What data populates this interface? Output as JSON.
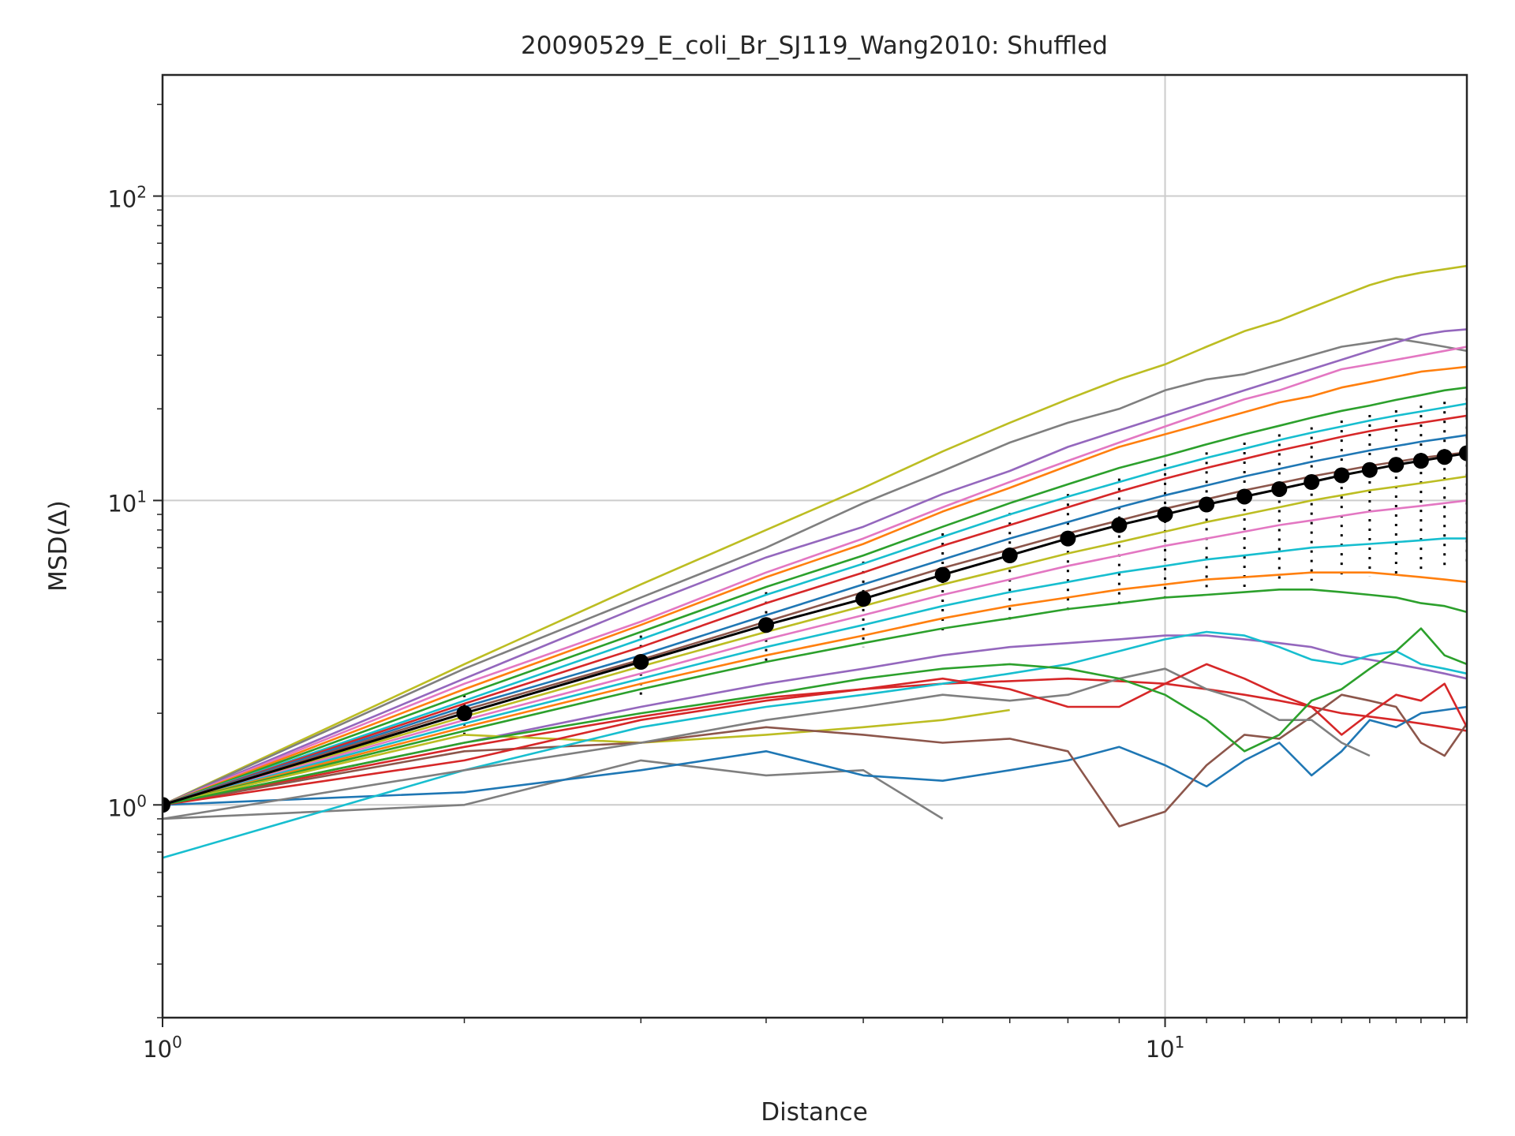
{
  "chart_data": {
    "type": "line",
    "title": "20090529_E_coli_Br_SJ119_Wang2010: Shuffled",
    "xlabel": "Distance",
    "ylabel": "MSD(Δ)",
    "xscale": "log",
    "yscale": "log",
    "xlim": [
      1,
      20
    ],
    "ylim": [
      0.2,
      250
    ],
    "grid": true,
    "x_ticks": [
      {
        "base": "10",
        "exp": "0",
        "value": 1
      },
      {
        "base": "10",
        "exp": "1",
        "value": 10
      }
    ],
    "y_ticks": [
      {
        "base": "10",
        "exp": "0",
        "value": 1
      },
      {
        "base": "10",
        "exp": "1",
        "value": 10
      },
      {
        "base": "10",
        "exp": "2",
        "value": 100
      }
    ],
    "mean_series": {
      "x": [
        1,
        2,
        3,
        4,
        5,
        6,
        7,
        8,
        9,
        10,
        11,
        12,
        13,
        14,
        15,
        16,
        17,
        18,
        19,
        20
      ],
      "y": [
        1.0,
        2.0,
        2.95,
        3.9,
        4.75,
        5.7,
        6.6,
        7.5,
        8.3,
        9.0,
        9.7,
        10.3,
        10.9,
        11.5,
        12.1,
        12.6,
        13.1,
        13.5,
        13.9,
        14.3
      ],
      "color": "#000000"
    },
    "spread_band": {
      "upper": [
        1.0,
        2.3,
        3.6,
        5.0,
        6.3,
        7.8,
        9.1,
        10.5,
        11.8,
        13.2,
        14.4,
        15.5,
        16.5,
        17.4,
        18.3,
        19.1,
        19.8,
        20.5,
        21.1,
        21.7
      ],
      "lower": [
        1.0,
        1.7,
        2.3,
        2.85,
        3.3,
        3.65,
        4.0,
        4.3,
        4.55,
        4.8,
        5.0,
        5.15,
        5.3,
        5.45,
        5.55,
        5.65,
        5.75,
        5.85,
        5.95,
        6.0
      ]
    },
    "palette": [
      "#1f77b4",
      "#ff7f0e",
      "#2ca02c",
      "#d62728",
      "#9467bd",
      "#8c564b",
      "#e377c2",
      "#7f7f7f",
      "#bcbd22",
      "#17becf"
    ],
    "series": [
      {
        "x": [
          1,
          2,
          3,
          4,
          5,
          6,
          7,
          8,
          9,
          10,
          11,
          12,
          13,
          14,
          15,
          16,
          17,
          18,
          19,
          20
        ],
        "y": [
          1,
          2.9,
          5.3,
          8,
          11,
          14.5,
          18,
          21.5,
          25,
          28,
          32,
          36,
          39,
          43,
          47,
          51,
          54,
          56,
          57.5,
          59
        ],
        "color": "#bcbd22"
      },
      {
        "x": [
          1,
          2,
          3,
          4,
          5,
          6,
          7,
          8,
          9,
          10,
          11,
          12,
          13,
          14,
          15,
          16,
          17,
          18,
          19,
          20
        ],
        "y": [
          1,
          2.8,
          4.8,
          7,
          9.8,
          12.5,
          15.5,
          18,
          20,
          23,
          25,
          26,
          28,
          30,
          32,
          33,
          34,
          33,
          32,
          31
        ],
        "color": "#7f7f7f"
      },
      {
        "x": [
          1,
          2,
          3,
          4,
          5,
          6,
          7,
          8,
          9,
          10,
          11,
          12,
          13,
          14,
          15,
          16,
          17,
          18,
          19,
          20
        ],
        "y": [
          1,
          2.6,
          4.5,
          6.5,
          8.2,
          10.5,
          12.5,
          15,
          17,
          19,
          21,
          23,
          25,
          27,
          29,
          31,
          33,
          35,
          36,
          36.5
        ],
        "color": "#9467bd"
      },
      {
        "x": [
          1,
          2,
          3,
          4,
          5,
          6,
          7,
          8,
          9,
          10,
          11,
          12,
          13,
          14,
          15,
          16,
          17,
          18,
          19,
          20
        ],
        "y": [
          1,
          2.5,
          4,
          5.8,
          7.5,
          9.5,
          11.5,
          13.5,
          15.5,
          17.5,
          19.5,
          21.5,
          23,
          25,
          27,
          28,
          29,
          30,
          31,
          32
        ],
        "color": "#e377c2"
      },
      {
        "x": [
          1,
          2,
          3,
          4,
          5,
          6,
          7,
          8,
          9,
          10,
          11,
          12,
          13,
          14,
          15,
          16,
          17,
          18,
          19,
          20
        ],
        "y": [
          1,
          2.4,
          3.9,
          5.6,
          7.2,
          9.2,
          11,
          13,
          15,
          16.5,
          18,
          19.5,
          21,
          22,
          23.5,
          24.5,
          25.5,
          26.5,
          27,
          27.5
        ],
        "color": "#ff7f0e"
      },
      {
        "x": [
          1,
          2,
          3,
          4,
          5,
          6,
          7,
          8,
          9,
          10,
          11,
          12,
          13,
          14,
          15,
          16,
          17,
          18,
          19,
          20
        ],
        "y": [
          1,
          2.3,
          3.7,
          5.2,
          6.6,
          8.2,
          9.8,
          11.3,
          12.8,
          14,
          15.3,
          16.5,
          17.6,
          18.7,
          19.7,
          20.5,
          21.4,
          22.2,
          23,
          23.5
        ],
        "color": "#2ca02c"
      },
      {
        "x": [
          1,
          2,
          3,
          4,
          5,
          6,
          7,
          8,
          9,
          10,
          11,
          12,
          13,
          14,
          15,
          16,
          17,
          18,
          19,
          20
        ],
        "y": [
          1,
          2.2,
          3.5,
          4.9,
          6.2,
          7.6,
          9,
          10.3,
          11.5,
          12.7,
          13.8,
          14.8,
          15.8,
          16.7,
          17.5,
          18.3,
          19,
          19.6,
          20.2,
          20.8
        ],
        "color": "#17becf"
      },
      {
        "x": [
          1,
          2,
          3,
          4,
          5,
          6,
          7,
          8,
          9,
          10,
          11,
          12,
          13,
          14,
          15,
          16,
          17,
          18,
          19,
          20
        ],
        "y": [
          1,
          2.15,
          3.3,
          4.6,
          5.8,
          7.1,
          8.3,
          9.5,
          10.7,
          11.8,
          12.8,
          13.7,
          14.6,
          15.4,
          16.2,
          16.9,
          17.5,
          18,
          18.5,
          19
        ],
        "color": "#d62728"
      },
      {
        "x": [
          1,
          2,
          3,
          4,
          5,
          6,
          7,
          8,
          9,
          10,
          11,
          12,
          13,
          14,
          15,
          16,
          17,
          18,
          19,
          20
        ],
        "y": [
          1,
          2.1,
          3.1,
          4.2,
          5.3,
          6.4,
          7.5,
          8.5,
          9.5,
          10.4,
          11.2,
          12,
          12.7,
          13.4,
          14,
          14.6,
          15.1,
          15.6,
          16,
          16.4
        ],
        "color": "#1f77b4"
      },
      {
        "x": [
          1,
          2,
          3,
          4,
          5,
          6,
          7,
          8,
          9,
          10,
          11,
          12,
          13,
          14,
          15,
          16,
          17,
          18,
          19,
          20
        ],
        "y": [
          1,
          2.05,
          3,
          4,
          5,
          6,
          6.9,
          7.8,
          8.6,
          9.4,
          10.1,
          10.8,
          11.4,
          12,
          12.5,
          13,
          13.4,
          13.8,
          14.1,
          14.4
        ],
        "color": "#8c564b"
      },
      {
        "x": [
          1,
          2,
          3,
          4,
          5,
          6,
          7,
          8,
          9,
          10,
          11,
          12,
          13,
          14,
          15,
          16,
          17,
          18,
          19,
          20
        ],
        "y": [
          1,
          1.95,
          2.85,
          3.7,
          4.5,
          5.3,
          6,
          6.7,
          7.3,
          7.9,
          8.5,
          9,
          9.5,
          10,
          10.4,
          10.8,
          11.1,
          11.4,
          11.7,
          12
        ],
        "color": "#bcbd22"
      },
      {
        "x": [
          1,
          2,
          3,
          4,
          5,
          6,
          7,
          8,
          9,
          10,
          11,
          12,
          13,
          14,
          15,
          16,
          17,
          18,
          19,
          20
        ],
        "y": [
          1,
          1.9,
          2.7,
          3.5,
          4.2,
          4.9,
          5.5,
          6.1,
          6.6,
          7.1,
          7.5,
          7.9,
          8.3,
          8.6,
          8.9,
          9.2,
          9.4,
          9.6,
          9.8,
          10
        ],
        "color": "#e377c2"
      },
      {
        "x": [
          1,
          2,
          3,
          4,
          5,
          6,
          7,
          8,
          9,
          10,
          11,
          12,
          13,
          14,
          15,
          16,
          17,
          18,
          19,
          20
        ],
        "y": [
          1,
          1.85,
          2.6,
          3.3,
          3.9,
          4.5,
          5,
          5.4,
          5.8,
          6.1,
          6.4,
          6.6,
          6.8,
          7,
          7.1,
          7.2,
          7.3,
          7.4,
          7.5,
          7.5
        ],
        "color": "#17becf"
      },
      {
        "x": [
          1,
          2,
          3,
          4,
          5,
          6,
          7,
          8,
          9,
          10,
          11,
          12,
          13,
          14,
          15,
          16,
          17,
          18,
          19,
          20
        ],
        "y": [
          1,
          1.8,
          2.5,
          3.1,
          3.6,
          4.1,
          4.5,
          4.8,
          5.1,
          5.3,
          5.5,
          5.6,
          5.7,
          5.8,
          5.8,
          5.8,
          5.7,
          5.6,
          5.5,
          5.4
        ],
        "color": "#ff7f0e"
      },
      {
        "x": [
          1,
          2,
          3,
          4,
          5,
          6,
          7,
          8,
          9,
          10,
          11,
          12,
          13,
          14,
          15,
          16,
          17,
          18,
          19,
          20
        ],
        "y": [
          1,
          1.75,
          2.4,
          2.95,
          3.4,
          3.8,
          4.1,
          4.4,
          4.6,
          4.8,
          4.9,
          5,
          5.1,
          5.1,
          5,
          4.9,
          4.8,
          4.6,
          4.5,
          4.3
        ],
        "color": "#2ca02c"
      },
      {
        "x": [
          1,
          2,
          3,
          4,
          5,
          6,
          7,
          8,
          9,
          10,
          11,
          12,
          13,
          14,
          15,
          16,
          17,
          18,
          19,
          20
        ],
        "y": [
          1,
          1.6,
          2.1,
          2.5,
          2.8,
          3.1,
          3.3,
          3.4,
          3.5,
          3.6,
          3.6,
          3.5,
          3.4,
          3.3,
          3.1,
          3,
          2.9,
          2.8,
          2.7,
          2.6
        ],
        "color": "#9467bd"
      },
      {
        "x": [
          1,
          2,
          3,
          4,
          5,
          6,
          7,
          8,
          9,
          10,
          11,
          12,
          13,
          14,
          15,
          16,
          17,
          18,
          19,
          20
        ],
        "y": [
          1,
          1.55,
          1.95,
          2.25,
          2.4,
          2.5,
          2.55,
          2.6,
          2.55,
          2.5,
          2.4,
          2.3,
          2.2,
          2.1,
          2,
          1.95,
          1.9,
          1.85,
          1.8,
          1.75
        ],
        "color": "#d62728"
      },
      {
        "x": [
          1,
          2,
          3,
          4,
          5,
          6,
          7
        ],
        "y": [
          1,
          1.7,
          1.6,
          1.7,
          1.8,
          1.9,
          2.05
        ],
        "color": "#bcbd22"
      },
      {
        "x": [
          1,
          2,
          3,
          4,
          5,
          6
        ],
        "y": [
          0.9,
          1.0,
          1.4,
          1.25,
          1.3,
          0.9
        ],
        "color": "#7f7f7f"
      },
      {
        "x": [
          1,
          2,
          3,
          4,
          5,
          6,
          7,
          8,
          9,
          10,
          11,
          12,
          13,
          14,
          15,
          16,
          17,
          18,
          19,
          20
        ],
        "y": [
          1,
          1.1,
          1.3,
          1.5,
          1.25,
          1.2,
          1.3,
          1.4,
          1.55,
          1.35,
          1.15,
          1.4,
          1.6,
          1.25,
          1.5,
          1.9,
          1.8,
          2.0,
          2.05,
          2.1
        ],
        "color": "#1f77b4"
      },
      {
        "x": [
          1,
          2,
          3,
          4,
          5,
          6,
          7,
          8,
          9,
          10,
          11,
          12,
          13,
          14,
          15,
          16,
          17,
          18,
          19,
          20
        ],
        "y": [
          1,
          1.5,
          1.6,
          1.8,
          1.7,
          1.6,
          1.65,
          1.5,
          0.85,
          0.95,
          1.35,
          1.7,
          1.65,
          1.95,
          2.3,
          2.2,
          2.1,
          1.6,
          1.45,
          1.85
        ],
        "color": "#8c564b"
      },
      {
        "x": [
          1,
          2,
          3,
          4,
          5,
          6,
          7,
          8,
          9,
          10,
          11,
          12,
          13,
          14,
          15,
          16,
          17,
          18,
          19,
          20
        ],
        "y": [
          0.67,
          1.3,
          1.8,
          2.1,
          2.3,
          2.5,
          2.7,
          2.9,
          3.2,
          3.5,
          3.7,
          3.6,
          3.3,
          3.0,
          2.9,
          3.1,
          3.2,
          2.9,
          2.8,
          2.7
        ],
        "color": "#17becf"
      },
      {
        "x": [
          1,
          2,
          3,
          4,
          5,
          6,
          7,
          8,
          9,
          10,
          11,
          12,
          13,
          14,
          15,
          16
        ],
        "y": [
          0.9,
          1.3,
          1.6,
          1.9,
          2.1,
          2.3,
          2.2,
          2.3,
          2.6,
          2.8,
          2.4,
          2.2,
          1.9,
          1.9,
          1.6,
          1.45
        ],
        "color": "#7f7f7f"
      },
      {
        "x": [
          1,
          2,
          3,
          4,
          5,
          6,
          7,
          8,
          9,
          10,
          11,
          12,
          13,
          14,
          15,
          16,
          17,
          18,
          19,
          20
        ],
        "y": [
          1,
          1.4,
          1.9,
          2.2,
          2.4,
          2.6,
          2.4,
          2.1,
          2.1,
          2.5,
          2.9,
          2.6,
          2.3,
          2.1,
          1.7,
          2.0,
          2.3,
          2.2,
          2.5,
          1.8
        ],
        "color": "#d62728"
      },
      {
        "x": [
          1,
          2,
          3,
          4,
          5,
          6,
          7,
          8,
          9,
          10,
          11,
          12,
          13,
          14,
          15,
          16,
          17,
          18,
          19,
          20
        ],
        "y": [
          1,
          1.6,
          2.0,
          2.3,
          2.6,
          2.8,
          2.9,
          2.8,
          2.6,
          2.3,
          1.9,
          1.5,
          1.7,
          2.2,
          2.4,
          2.8,
          3.2,
          3.8,
          3.1,
          2.9
        ],
        "color": "#2ca02c"
      }
    ]
  }
}
